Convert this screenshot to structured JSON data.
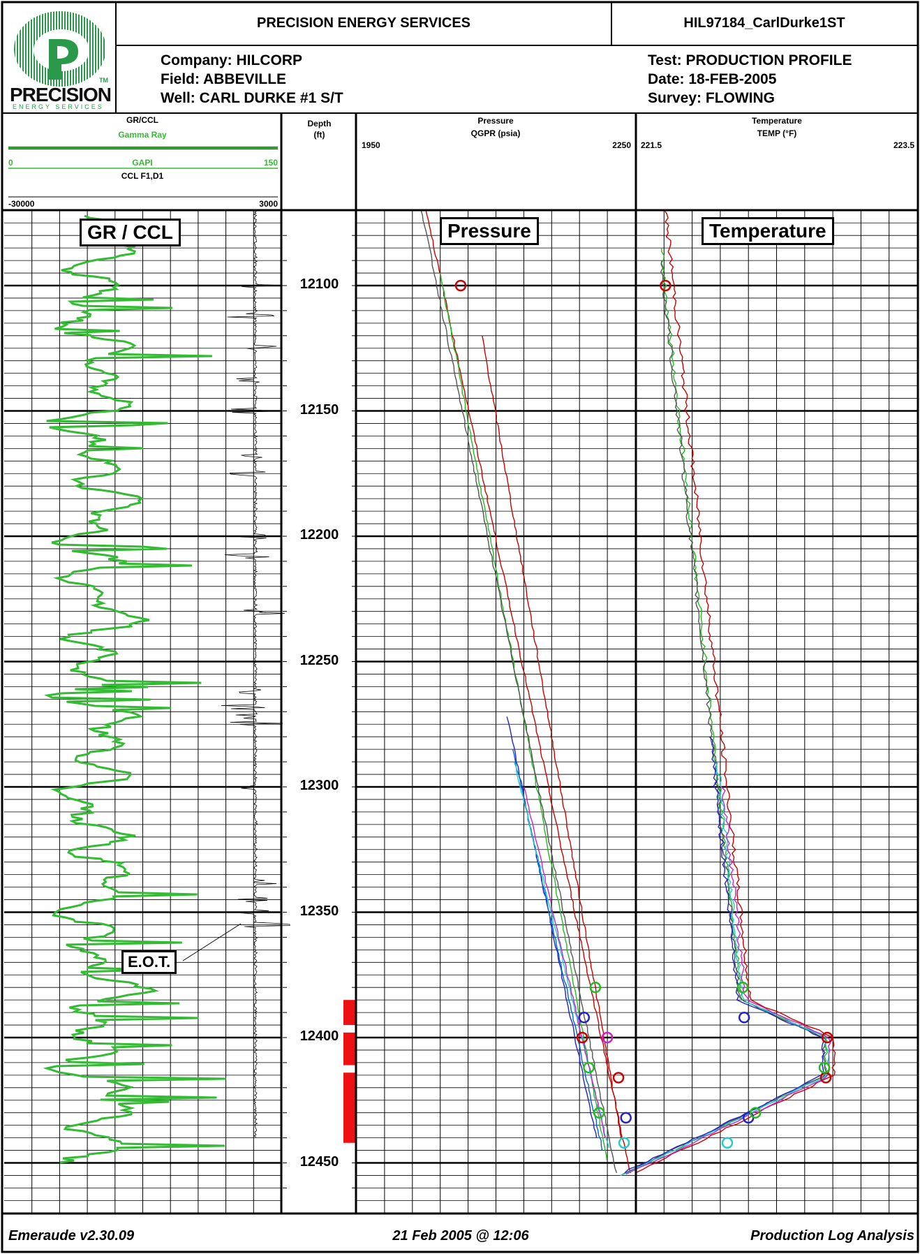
{
  "header": {
    "company_name": "PRECISION ENERGY SERVICES",
    "file_id": "HIL97184_CarlDurke1ST",
    "logo_text": "PRECISION",
    "logo_subtext": "ENERGY SERVICES",
    "logo_tm": "TM",
    "company": "Company: HILCORP",
    "field": "Field: ABBEVILLE",
    "well": "Well: CARL DURKE #1 S/T",
    "test": "Test: PRODUCTION PROFILE",
    "date": "Date: 18-FEB-2005",
    "survey": "Survey: FLOWING"
  },
  "tracks": {
    "gr": {
      "title": "GR/CCL",
      "curve_name": "Gamma Ray",
      "min": "0",
      "unit": "GAPI",
      "max": "150",
      "ccl_name": "CCL  F1,D1",
      "ccl_min": "-30000",
      "ccl_max": "3000",
      "label": "GR / CCL",
      "annotation": "E.O.T."
    },
    "depth": {
      "title": "Depth",
      "unit": "(ft)"
    },
    "pressure": {
      "title": "Pressure",
      "curve": "QGPR (psia)",
      "min": "1950",
      "max": "2250",
      "label": "Pressure"
    },
    "temperature": {
      "title": "Temperature",
      "curve": "TEMP (°F)",
      "min": "221.5",
      "max": "223.5",
      "label": "Temperature"
    }
  },
  "depth_labels": [
    "12100",
    "12150",
    "12200",
    "12250",
    "12300",
    "12350",
    "12400",
    "12450"
  ],
  "perforations": [
    [
      12385,
      12395
    ],
    [
      12398,
      12411
    ],
    [
      12414,
      12442
    ]
  ],
  "colors": {
    "gr": "#33bb33",
    "perf": "#ee1111",
    "grid": "#000000"
  },
  "footer": {
    "software": "Emeraude  v2.30.09",
    "timestamp": "21 Feb 2005 @ 12:06",
    "title": "Production Log Analysis"
  }
}
